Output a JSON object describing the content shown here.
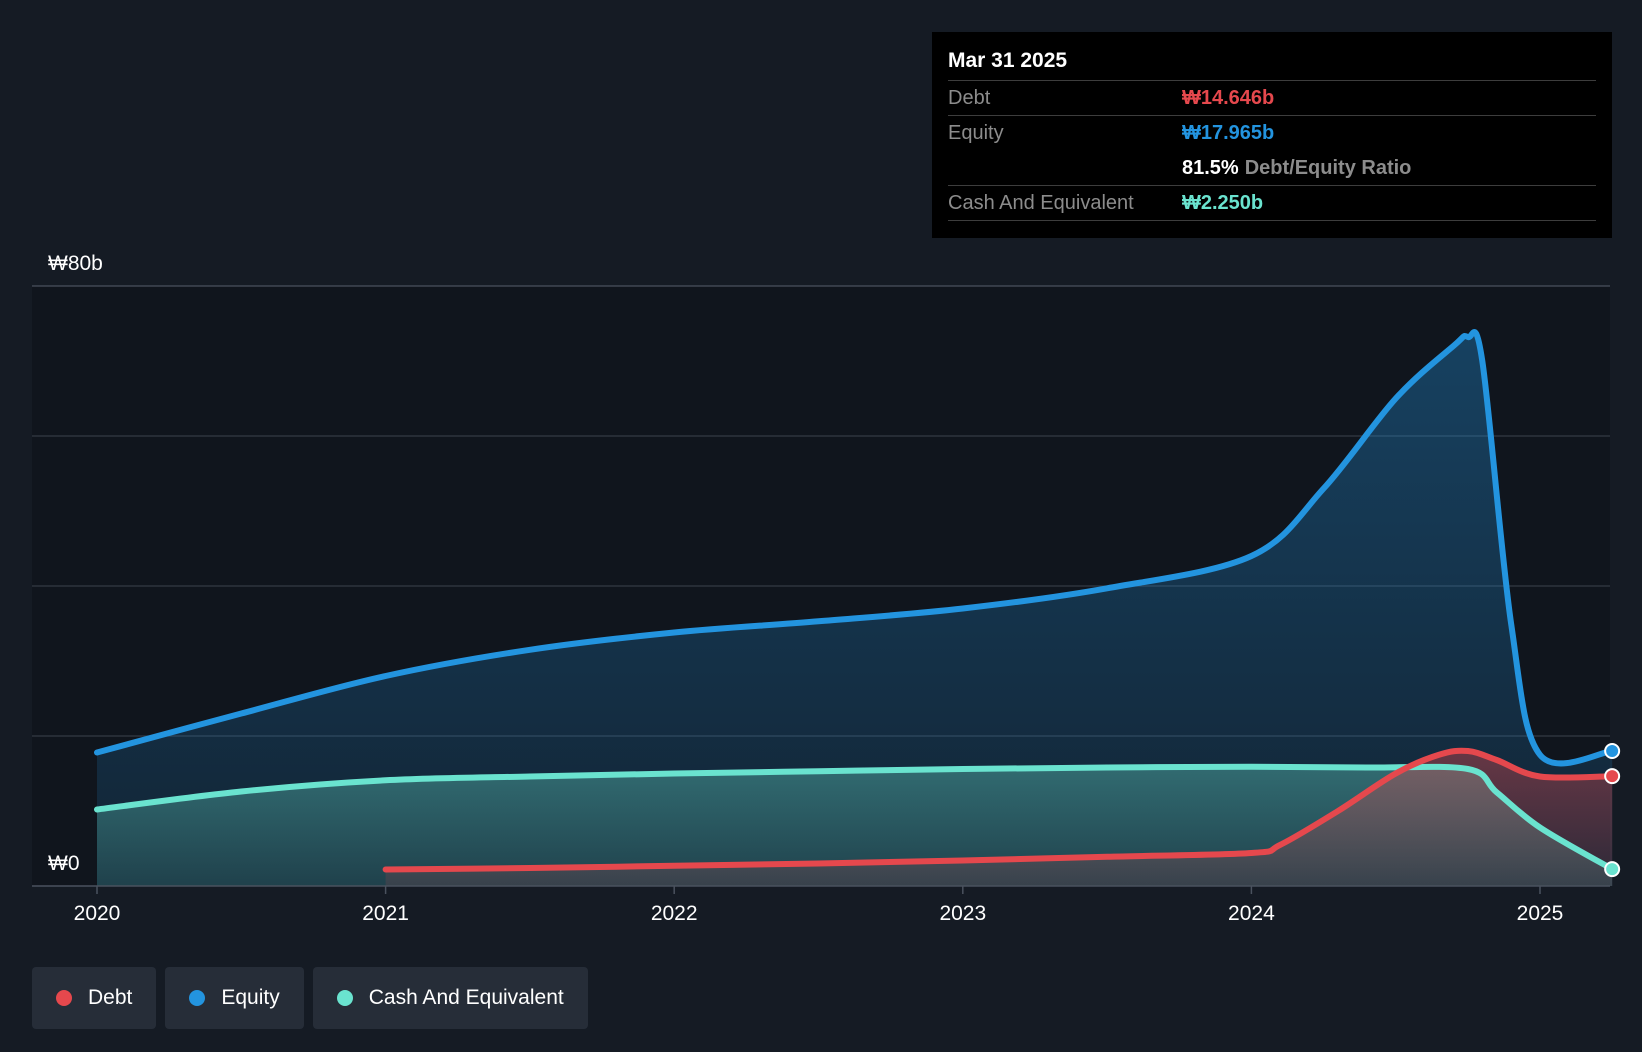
{
  "colors": {
    "debt": "#e5484d",
    "equity": "#2394df",
    "cash": "#6ae3cf",
    "background": "#151b24",
    "plot_background": "#10151d",
    "grid": "#333a44"
  },
  "tooltip": {
    "date": "Mar 31 2025",
    "debt_label": "Debt",
    "debt_value": "₩14.646b",
    "equity_label": "Equity",
    "equity_value": "₩17.965b",
    "ratio_value": "81.5%",
    "ratio_label": "Debt/Equity Ratio",
    "cash_label": "Cash And Equivalent",
    "cash_value": "₩2.250b"
  },
  "legend": [
    {
      "label": "Debt",
      "color_key": "debt"
    },
    {
      "label": "Equity",
      "color_key": "equity"
    },
    {
      "label": "Cash And Equivalent",
      "color_key": "cash"
    }
  ],
  "chart_data": {
    "type": "area",
    "title": "",
    "xlabel": "",
    "ylabel": "",
    "xlim": [
      2019.8,
      2025.25
    ],
    "ylim": [
      0,
      80
    ],
    "y_tick_labels": [
      {
        "value": 80,
        "label": "₩80b"
      },
      {
        "value": 0,
        "label": "₩0"
      }
    ],
    "gridlines": [
      20,
      40,
      60,
      80
    ],
    "x_ticks": [
      {
        "value": 2020,
        "label": "2020"
      },
      {
        "value": 2021,
        "label": "2021"
      },
      {
        "value": 2022,
        "label": "2022"
      },
      {
        "value": 2023,
        "label": "2023"
      },
      {
        "value": 2024,
        "label": "2024"
      },
      {
        "value": 2025,
        "label": "2025"
      }
    ],
    "series": [
      {
        "name": "Equity",
        "color_key": "equity",
        "x": [
          2020.0,
          2020.5,
          2021.0,
          2021.5,
          2022.0,
          2022.5,
          2023.0,
          2023.5,
          2024.0,
          2024.25,
          2024.5,
          2024.7,
          2024.75,
          2024.8,
          2024.9,
          2025.0,
          2025.25
        ],
        "values": [
          17.8,
          23.0,
          28.0,
          31.5,
          33.8,
          35.3,
          37.0,
          39.7,
          44.0,
          53.0,
          65.0,
          72.0,
          73.2,
          70.0,
          35.0,
          17.5,
          18.0
        ]
      },
      {
        "name": "Cash And Equivalent",
        "color_key": "cash",
        "x": [
          2020.0,
          2020.5,
          2021.0,
          2021.5,
          2022.0,
          2022.5,
          2023.0,
          2023.5,
          2024.0,
          2024.4,
          2024.75,
          2024.85,
          2025.0,
          2025.25
        ],
        "values": [
          10.2,
          12.6,
          14.1,
          14.6,
          15.0,
          15.3,
          15.6,
          15.8,
          15.9,
          15.8,
          15.6,
          12.5,
          7.8,
          2.25
        ]
      },
      {
        "name": "Debt",
        "color_key": "debt",
        "x": [
          2021.0,
          2021.5,
          2022.0,
          2022.5,
          2023.0,
          2023.5,
          2024.0,
          2024.1,
          2024.3,
          2024.5,
          2024.65,
          2024.75,
          2024.85,
          2025.0,
          2025.25
        ],
        "values": [
          2.2,
          2.4,
          2.7,
          3.0,
          3.4,
          3.9,
          4.4,
          5.5,
          10.0,
          15.0,
          17.5,
          18.0,
          16.8,
          14.6,
          14.646
        ]
      }
    ]
  }
}
